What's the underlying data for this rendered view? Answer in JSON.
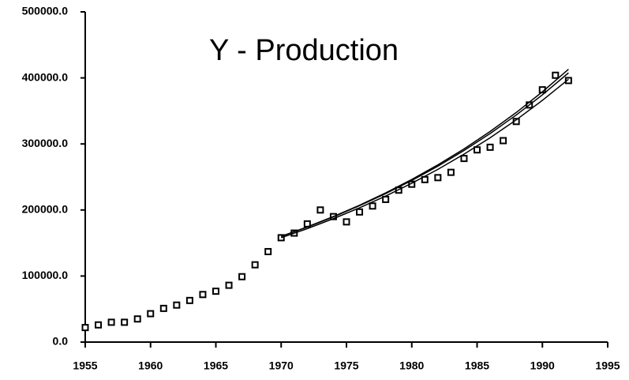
{
  "chart_data": {
    "type": "scatter",
    "title": "Y - Production",
    "xlim": [
      1955,
      1995
    ],
    "xticks": [
      1955,
      1960,
      1965,
      1970,
      1975,
      1980,
      1985,
      1990,
      1995
    ],
    "ylim": [
      0,
      500000
    ],
    "yticks": [
      {
        "value": 0,
        "label": "0.0"
      },
      {
        "value": 100000,
        "label": "100000.0"
      },
      {
        "value": 200000,
        "label": "200000.0"
      },
      {
        "value": 300000,
        "label": "300000.0"
      },
      {
        "value": 400000,
        "label": "400000.0"
      },
      {
        "value": 500000,
        "label": "500000.0"
      }
    ],
    "series": [
      {
        "style": "markers",
        "marker": "square",
        "color": "#000000",
        "x": [
          1955,
          1956,
          1957,
          1958,
          1959,
          1960,
          1961,
          1962,
          1963,
          1964,
          1965,
          1966,
          1967,
          1968,
          1969,
          1970,
          1971,
          1972,
          1973,
          1974,
          1975,
          1976,
          1977,
          1978,
          1979,
          1980,
          1981,
          1982,
          1983,
          1984,
          1985,
          1986,
          1987,
          1988,
          1989,
          1990,
          1991,
          1992
        ],
        "values": [
          22000,
          26000,
          30000,
          30000,
          35000,
          43000,
          51000,
          56000,
          63000,
          72000,
          77000,
          86000,
          99000,
          117000,
          137000,
          158000,
          165000,
          179000,
          200000,
          190000,
          182000,
          197000,
          206000,
          216000,
          230000,
          239000,
          246000,
          249000,
          257000,
          278000,
          291000,
          295000,
          305000,
          334000,
          359000,
          382000,
          404000,
          396000
        ]
      },
      {
        "style": "line",
        "color": "#000000",
        "x": [
          1970,
          1972,
          1974,
          1976,
          1978,
          1980,
          1982,
          1984,
          1986,
          1988,
          1990,
          1992
        ],
        "values": [
          160000,
          174400,
          190100,
          207200,
          225900,
          246200,
          268400,
          292500,
          318900,
          347600,
          378900,
          413000
        ]
      },
      {
        "style": "line",
        "color": "#000000",
        "x": [
          1970,
          1972,
          1974,
          1976,
          1978,
          1980,
          1982,
          1984,
          1986,
          1988,
          1990,
          1992
        ],
        "values": [
          158000,
          171800,
          186900,
          203300,
          221100,
          240500,
          261500,
          284500,
          309400,
          336500,
          366000,
          398000
        ]
      },
      {
        "style": "line",
        "color": "#000000",
        "x": [
          1970,
          1972,
          1974,
          1976,
          1978,
          1980,
          1982,
          1984,
          1986,
          1988,
          1990,
          1992
        ],
        "values": [
          160000,
          174200,
          189600,
          206500,
          224800,
          244700,
          266400,
          290100,
          315800,
          343800,
          374300,
          407600
        ]
      }
    ]
  }
}
